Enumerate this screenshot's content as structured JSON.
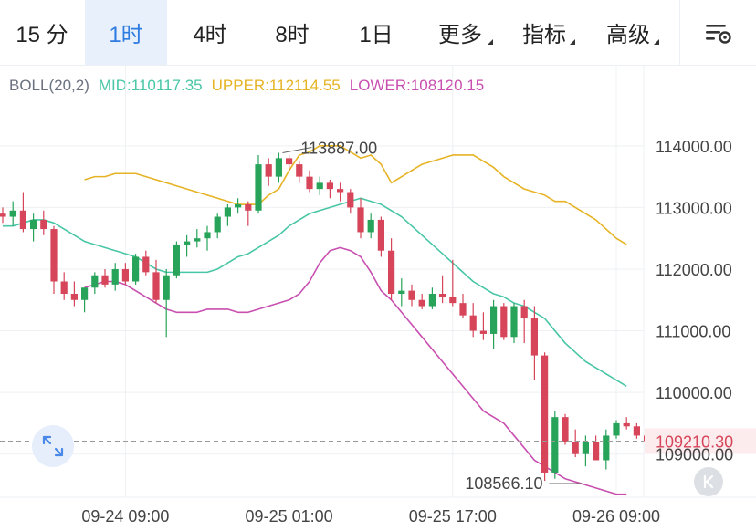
{
  "tabs": [
    {
      "label": "15 分",
      "active": false
    },
    {
      "label": "1时",
      "active": true
    },
    {
      "label": "4时",
      "active": false
    },
    {
      "label": "8时",
      "active": false
    },
    {
      "label": "1日",
      "active": false
    },
    {
      "label": "更多",
      "active": false,
      "dropdown": true
    },
    {
      "label": "指标",
      "active": false,
      "dropdown": true
    },
    {
      "label": "高级",
      "active": false,
      "dropdown": true
    }
  ],
  "settings_icon": "chart-settings-icon",
  "legend": {
    "name": "BOLL(20,2)",
    "mid": "MID:110117.35",
    "upper": "UPPER:112114.55",
    "lower": "LOWER:108120.15"
  },
  "colors": {
    "mid": "#48c6a6",
    "upper": "#e6b325",
    "lower": "#c84fb0",
    "up": "#27a35a",
    "down": "#d6455a",
    "grid": "#eef0f3",
    "text": "#444444",
    "legend_name": "#6b7280",
    "accent": "#2f7be0",
    "price_line": "#999999"
  },
  "chart_data": {
    "type": "candlestick",
    "indicator": "BOLL(20,2)",
    "ylim": [
      108300,
      115300
    ],
    "y_ticks": [
      "114000.00",
      "113000.00",
      "112000.00",
      "111000.00",
      "110000.00",
      "109000.00"
    ],
    "x_ticks": [
      "09-24 09:00",
      "09-25 01:00",
      "09-25 17:00",
      "09-26 09:00"
    ],
    "x_tick_bars": [
      12,
      28,
      44,
      60
    ],
    "current_price": "109210.30",
    "current_price_value": 109210.3,
    "annotations": [
      {
        "text": "113887.00",
        "bar": 27,
        "value": 113887
      },
      {
        "text": "108566.10",
        "bar": 57,
        "value": 108566.1
      }
    ],
    "candles": [
      [
        112900,
        113000,
        112750,
        112850
      ],
      [
        112850,
        113100,
        112700,
        112950
      ],
      [
        112950,
        113250,
        112600,
        112650
      ],
      [
        112650,
        112900,
        112450,
        112800
      ],
      [
        112800,
        112950,
        112550,
        112650
      ],
      [
        112650,
        112700,
        111600,
        111800
      ],
      [
        111800,
        111950,
        111500,
        111600
      ],
      [
        111600,
        111800,
        111400,
        111500
      ],
      [
        111500,
        111700,
        111300,
        111700
      ],
      [
        111700,
        111950,
        111600,
        111900
      ],
      [
        111900,
        112000,
        111700,
        111750
      ],
      [
        111750,
        112100,
        111650,
        112000
      ],
      [
        112000,
        112100,
        111750,
        111800
      ],
      [
        111800,
        112250,
        111750,
        112200
      ],
      [
        112200,
        112300,
        111900,
        111950
      ],
      [
        111950,
        112150,
        111450,
        111500
      ],
      [
        111500,
        112000,
        110900,
        111900
      ],
      [
        111900,
        112450,
        111850,
        112400
      ],
      [
        112400,
        112550,
        112200,
        112450
      ],
      [
        112450,
        112650,
        112350,
        112500
      ],
      [
        112500,
        112700,
        112300,
        112600
      ],
      [
        112600,
        112900,
        112500,
        112850
      ],
      [
        112850,
        113050,
        112700,
        113000
      ],
      [
        113000,
        113150,
        112900,
        113050
      ],
      [
        113050,
        113100,
        112700,
        112950
      ],
      [
        112950,
        113850,
        112900,
        113700
      ],
      [
        113700,
        113800,
        113350,
        113500
      ],
      [
        113500,
        113887,
        113400,
        113800
      ],
      [
        113800,
        113850,
        113600,
        113700
      ],
      [
        113700,
        113750,
        113400,
        113500
      ],
      [
        113500,
        113600,
        113250,
        113300
      ],
      [
        113300,
        113500,
        113200,
        113400
      ],
      [
        113400,
        113450,
        113150,
        113300
      ],
      [
        113300,
        113400,
        113100,
        113250
      ],
      [
        113250,
        113300,
        112900,
        113000
      ],
      [
        113000,
        113150,
        112500,
        112600
      ],
      [
        112600,
        112900,
        112500,
        112800
      ],
      [
        112800,
        112850,
        112200,
        112300
      ],
      [
        112300,
        112500,
        111500,
        111600
      ],
      [
        111600,
        111850,
        111400,
        111650
      ],
      [
        111650,
        111750,
        111400,
        111500
      ],
      [
        111500,
        111600,
        111350,
        111400
      ],
      [
        111400,
        111700,
        111350,
        111600
      ],
      [
        111600,
        111900,
        111450,
        111550
      ],
      [
        111550,
        112150,
        111400,
        111450
      ],
      [
        111450,
        111600,
        111200,
        111250
      ],
      [
        111250,
        111450,
        110900,
        111000
      ],
      [
        111000,
        111300,
        110850,
        110950
      ],
      [
        110950,
        111500,
        110700,
        111400
      ],
      [
        111400,
        111450,
        110850,
        110900
      ],
      [
        110900,
        111450,
        110800,
        111400
      ],
      [
        111400,
        111500,
        110800,
        111200
      ],
      [
        111200,
        111400,
        110200,
        110600
      ],
      [
        110600,
        110650,
        108566,
        108700
      ],
      [
        108700,
        109700,
        108600,
        109600
      ],
      [
        109600,
        109650,
        109150,
        109200
      ],
      [
        109200,
        109400,
        108950,
        109000
      ],
      [
        109000,
        109300,
        108800,
        109200
      ],
      [
        109200,
        109300,
        108900,
        108900
      ],
      [
        108900,
        109400,
        108750,
        109300
      ],
      [
        109300,
        109550,
        109250,
        109500
      ],
      [
        109500,
        109600,
        109400,
        109450
      ],
      [
        109450,
        109500,
        109250,
        109300
      ],
      [
        109300,
        109400,
        109150,
        109210.3
      ]
    ],
    "mid": [
      112700,
      112700,
      112750,
      112800,
      112800,
      112750,
      112650,
      112550,
      112450,
      112400,
      112350,
      112300,
      112250,
      112200,
      112100,
      112000,
      111950,
      111950,
      111950,
      111950,
      111950,
      112000,
      112100,
      112200,
      112250,
      112350,
      112450,
      112550,
      112700,
      112800,
      112900,
      112950,
      113000,
      113050,
      113100,
      113150,
      113100,
      113050,
      112950,
      112850,
      112700,
      112550,
      112400,
      112250,
      112100,
      111950,
      111800,
      111700,
      111600,
      111550,
      111450,
      111400,
      111300,
      111200,
      111000,
      110800,
      110650,
      110500,
      110400,
      110300,
      110200,
      110100
    ],
    "upper": [
      113450,
      113500,
      113500,
      113550,
      113550,
      113550,
      113500,
      113450,
      113400,
      113350,
      113300,
      113250,
      113200,
      113150,
      113100,
      113050,
      113050,
      113050,
      113200,
      113300,
      113600,
      113850,
      113900,
      114000,
      114000,
      114000,
      113900,
      113800,
      113850,
      113700,
      113400,
      113500,
      113600,
      113700,
      113750,
      113800,
      113850,
      113850,
      113850,
      113750,
      113650,
      113500,
      113400,
      113300,
      113250,
      113200,
      113100,
      113100,
      113000,
      112900,
      112800,
      112650,
      112500,
      112400
    ],
    "lower": [
      111700,
      111750,
      111800,
      111800,
      111750,
      111650,
      111550,
      111450,
      111350,
      111300,
      111300,
      111300,
      111350,
      111350,
      111350,
      111300,
      111300,
      111350,
      111400,
      111450,
      111500,
      111600,
      111800,
      112100,
      112300,
      112350,
      112300,
      112200,
      111950,
      111650,
      111500,
      111300,
      111100,
      110900,
      110700,
      110500,
      110300,
      110100,
      109900,
      109700,
      109600,
      109500,
      109300,
      109100,
      108900,
      108800,
      108700,
      108600,
      108550,
      108500,
      108450,
      108400,
      108350,
      108350
    ],
    "lower_offset": 8
  }
}
